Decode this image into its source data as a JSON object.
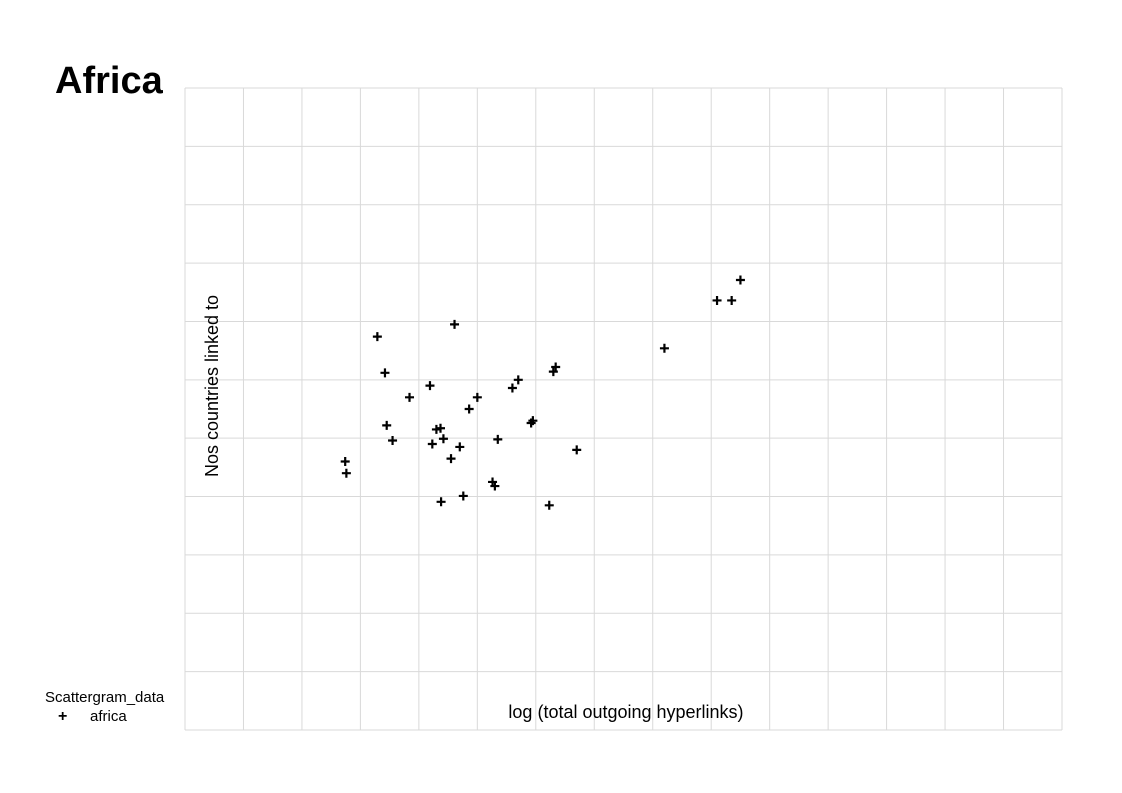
{
  "chart_data": {
    "type": "scatter",
    "title": "Africa",
    "xlabel": "log (total outgoing hyperlinks)",
    "ylabel": "Nos countries linked to",
    "grid": true,
    "xlim": [
      0,
      15
    ],
    "ylim": [
      0,
      11
    ],
    "legend": {
      "title": "Scattergram_data",
      "position": "bottom-left",
      "entries": [
        {
          "label": "africa",
          "marker": "+"
        }
      ]
    },
    "series": [
      {
        "name": "africa",
        "marker": "+",
        "color": "#000000",
        "points": [
          [
            2.74,
            4.6
          ],
          [
            2.76,
            4.4
          ],
          [
            3.29,
            6.74
          ],
          [
            3.42,
            6.12
          ],
          [
            3.45,
            5.22
          ],
          [
            3.55,
            4.96
          ],
          [
            3.84,
            5.7
          ],
          [
            4.19,
            5.9
          ],
          [
            4.23,
            4.9
          ],
          [
            4.3,
            5.15
          ],
          [
            4.37,
            5.17
          ],
          [
            4.42,
            4.99
          ],
          [
            4.38,
            3.91
          ],
          [
            4.55,
            4.65
          ],
          [
            4.61,
            6.95
          ],
          [
            4.7,
            4.85
          ],
          [
            4.76,
            4.01
          ],
          [
            4.86,
            5.5
          ],
          [
            5.0,
            5.7
          ],
          [
            5.26,
            4.25
          ],
          [
            5.3,
            4.18
          ],
          [
            5.35,
            4.98
          ],
          [
            5.6,
            5.86
          ],
          [
            5.7,
            6.0
          ],
          [
            5.92,
            5.26
          ],
          [
            5.95,
            5.3
          ],
          [
            6.23,
            3.85
          ],
          [
            6.3,
            6.14
          ],
          [
            6.34,
            6.22
          ],
          [
            6.7,
            4.8
          ],
          [
            8.2,
            6.54
          ],
          [
            9.1,
            7.36
          ],
          [
            9.35,
            7.36
          ],
          [
            9.5,
            7.71
          ]
        ]
      }
    ]
  }
}
